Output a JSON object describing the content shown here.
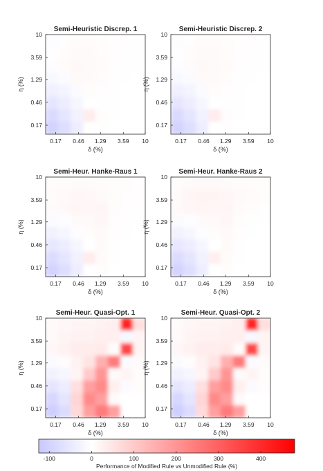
{
  "chart_data": [
    {
      "type": "heatmap",
      "title": "Semi-Heuristic Discrep. 1",
      "xlabel": "δ (%)",
      "ylabel": "η (%)",
      "x_ticks": [
        "0.17",
        "0.46",
        "1.29",
        "3.59",
        "10"
      ],
      "y_ticks": [
        "10",
        "3.59",
        "1.29",
        "0.46",
        "0.17"
      ],
      "x_scale": "log",
      "y_scale": "log",
      "values": [
        [
          -5,
          3,
          8,
          8,
          6,
          4,
          3,
          2
        ],
        [
          -3,
          6,
          10,
          9,
          6,
          3,
          2,
          1
        ],
        [
          -4,
          8,
          14,
          12,
          8,
          3,
          1,
          1
        ],
        [
          -15,
          -10,
          12,
          10,
          5,
          2,
          1,
          0
        ],
        [
          -35,
          -25,
          -10,
          5,
          3,
          1,
          0,
          0
        ],
        [
          -60,
          -40,
          -20,
          0,
          2,
          1,
          0,
          0
        ],
        [
          -85,
          -60,
          -30,
          35,
          5,
          1,
          0,
          0
        ],
        [
          -100,
          -75,
          -40,
          0,
          2,
          0,
          0,
          0
        ]
      ]
    },
    {
      "type": "heatmap",
      "title": "Semi-Heuristic Discrep. 2",
      "xlabel": "δ (%)",
      "ylabel": "η (%)",
      "x_ticks": [
        "0.17",
        "0.46",
        "1.29",
        "3.59",
        "10"
      ],
      "y_ticks": [
        "10",
        "3.59",
        "1.29",
        "0.46",
        "0.17"
      ],
      "x_scale": "log",
      "y_scale": "log",
      "values": [
        [
          -5,
          3,
          8,
          8,
          6,
          4,
          3,
          2
        ],
        [
          -3,
          6,
          10,
          9,
          6,
          3,
          2,
          1
        ],
        [
          -4,
          8,
          14,
          12,
          8,
          3,
          1,
          1
        ],
        [
          -15,
          -10,
          12,
          10,
          5,
          2,
          1,
          0
        ],
        [
          -35,
          -25,
          -10,
          5,
          3,
          1,
          0,
          0
        ],
        [
          -60,
          -40,
          -20,
          0,
          2,
          1,
          0,
          0
        ],
        [
          -85,
          -60,
          -30,
          35,
          5,
          1,
          0,
          0
        ],
        [
          -100,
          -75,
          -40,
          0,
          2,
          0,
          0,
          0
        ]
      ]
    },
    {
      "type": "heatmap",
      "title": "Semi-Heur. Hanke-Raus 1",
      "xlabel": "δ (%)",
      "ylabel": "η (%)",
      "x_ticks": [
        "0.17",
        "0.46",
        "1.29",
        "3.59",
        "10"
      ],
      "y_ticks": [
        "10",
        "3.59",
        "1.29",
        "0.46",
        "0.17"
      ],
      "x_scale": "log",
      "y_scale": "log",
      "values": [
        [
          5,
          8,
          10,
          10,
          8,
          6,
          5,
          4
        ],
        [
          8,
          12,
          15,
          14,
          10,
          6,
          4,
          3
        ],
        [
          10,
          14,
          18,
          16,
          18,
          6,
          3,
          2
        ],
        [
          -10,
          -5,
          10,
          12,
          15,
          4,
          2,
          1
        ],
        [
          -30,
          -20,
          -5,
          5,
          12,
          3,
          1,
          0
        ],
        [
          -55,
          -40,
          -20,
          0,
          10,
          2,
          0,
          0
        ],
        [
          -80,
          -60,
          -30,
          35,
          8,
          1,
          0,
          0
        ],
        [
          -100,
          -75,
          -40,
          0,
          5,
          0,
          0,
          0
        ]
      ]
    },
    {
      "type": "heatmap",
      "title": "Semi-Heur. Hanke-Raus 2",
      "xlabel": "δ (%)",
      "ylabel": "η (%)",
      "x_ticks": [
        "0.17",
        "0.46",
        "1.29",
        "3.59",
        "10"
      ],
      "y_ticks": [
        "10",
        "3.59",
        "1.29",
        "0.46",
        "0.17"
      ],
      "x_scale": "log",
      "y_scale": "log",
      "values": [
        [
          5,
          10,
          12,
          12,
          10,
          8,
          6,
          5
        ],
        [
          10,
          18,
          20,
          20,
          16,
          12,
          8,
          6
        ],
        [
          12,
          16,
          18,
          16,
          18,
          8,
          5,
          3
        ],
        [
          -10,
          -5,
          10,
          12,
          15,
          5,
          2,
          1
        ],
        [
          -30,
          -20,
          -5,
          5,
          12,
          3,
          1,
          0
        ],
        [
          -55,
          -40,
          -20,
          0,
          10,
          2,
          0,
          0
        ],
        [
          -80,
          -60,
          -30,
          30,
          8,
          1,
          0,
          0
        ],
        [
          -100,
          -75,
          -40,
          0,
          5,
          0,
          0,
          0
        ]
      ]
    },
    {
      "type": "heatmap",
      "title": "Semi-Heur. Quasi-Opt. 1",
      "xlabel": "δ (%)",
      "ylabel": "η (%)",
      "x_ticks": [
        "0.17",
        "0.46",
        "1.29",
        "3.59",
        "10"
      ],
      "y_ticks": [
        "10",
        "3.59",
        "1.29",
        "0.46",
        "0.17"
      ],
      "x_scale": "log",
      "y_scale": "log",
      "values": [
        [
          10,
          15,
          20,
          20,
          25,
          30,
          420,
          60
        ],
        [
          12,
          20,
          25,
          25,
          30,
          30,
          -15,
          20
        ],
        [
          15,
          25,
          35,
          35,
          40,
          5,
          350,
          20
        ],
        [
          -10,
          5,
          25,
          50,
          150,
          250,
          -10,
          10
        ],
        [
          -30,
          -20,
          20,
          100,
          200,
          10,
          20,
          5
        ],
        [
          -60,
          -40,
          60,
          180,
          220,
          30,
          -10,
          5
        ],
        [
          -90,
          -60,
          80,
          220,
          180,
          10,
          0,
          0
        ],
        [
          -110,
          -80,
          70,
          180,
          250,
          180,
          0,
          0
        ]
      ]
    },
    {
      "type": "heatmap",
      "title": "Semi-Heur. Quasi-Opt. 2",
      "xlabel": "δ (%)",
      "ylabel": "η (%)",
      "x_ticks": [
        "0.17",
        "0.46",
        "1.29",
        "3.59",
        "10"
      ],
      "y_ticks": [
        "10",
        "3.59",
        "1.29",
        "0.46",
        "0.17"
      ],
      "x_scale": "log",
      "y_scale": "log",
      "values": [
        [
          10,
          15,
          20,
          20,
          25,
          30,
          420,
          60
        ],
        [
          12,
          20,
          25,
          25,
          30,
          30,
          -15,
          20
        ],
        [
          15,
          25,
          35,
          35,
          40,
          5,
          350,
          20
        ],
        [
          -10,
          5,
          25,
          50,
          150,
          250,
          -10,
          10
        ],
        [
          -30,
          -20,
          20,
          100,
          200,
          10,
          20,
          5
        ],
        [
          -60,
          -40,
          60,
          180,
          220,
          30,
          -10,
          5
        ],
        [
          -90,
          -60,
          80,
          220,
          180,
          10,
          0,
          0
        ],
        [
          -110,
          -80,
          70,
          180,
          250,
          180,
          0,
          0
        ]
      ]
    }
  ],
  "colorbar": {
    "label": "Performance of Modified Rule vs Unmodified Rule (%)",
    "ticks": [
      -100,
      0,
      100,
      200,
      300,
      400
    ],
    "range": [
      -125,
      480
    ],
    "colors": {
      "min": "#c8c8ff",
      "mid": "#ffffff",
      "max": "#ff0000"
    }
  }
}
